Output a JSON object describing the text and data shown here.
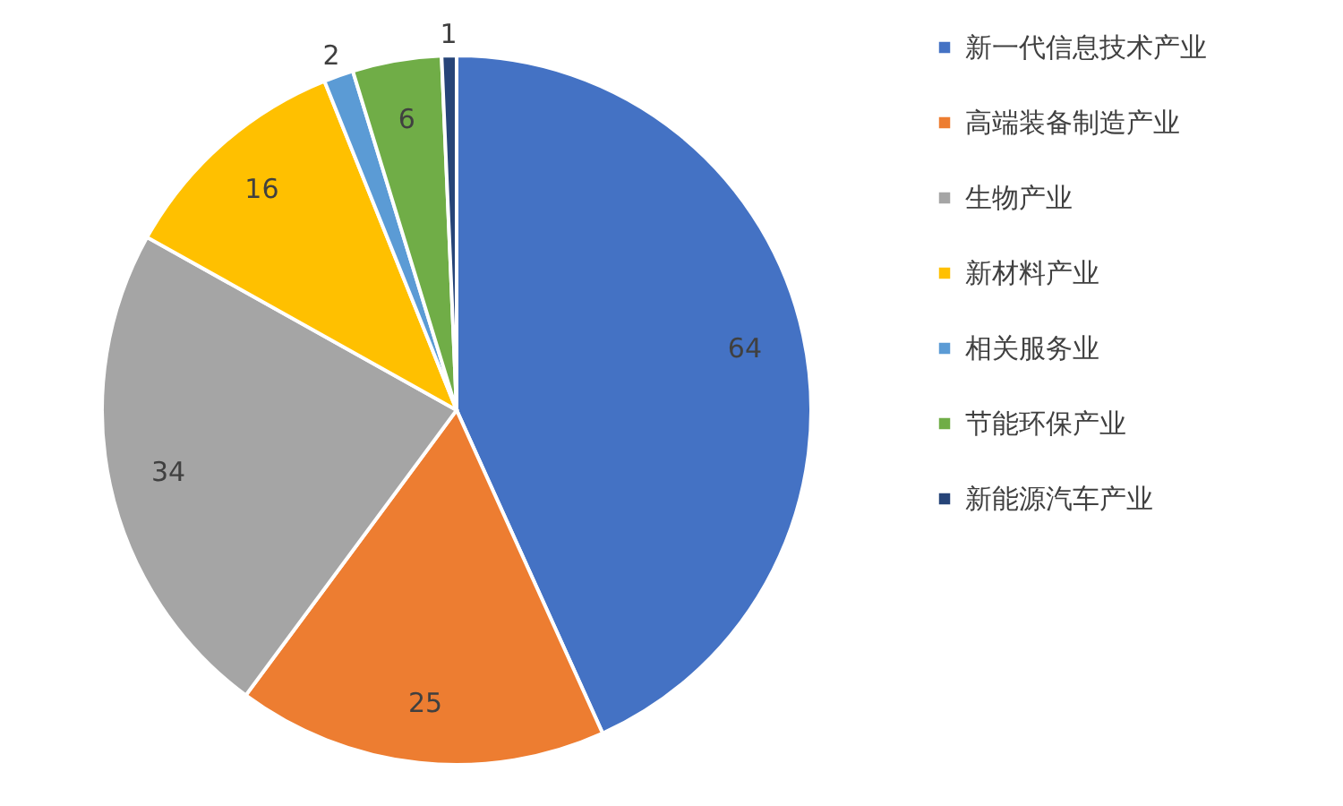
{
  "chart_data": {
    "type": "pie",
    "categories": [
      "新一代信息技术产业",
      "高端装备制造产业",
      "生物产业",
      "新材料产业",
      "相关服务业",
      "节能环保产业",
      "新能源汽车产业"
    ],
    "values": [
      64,
      25,
      34,
      16,
      2,
      6,
      1
    ],
    "colors": [
      "#4472c4",
      "#ed7d31",
      "#a5a5a5",
      "#ffc000",
      "#5b9bd5",
      "#70ad47",
      "#264478"
    ],
    "data_labels": true,
    "legend": "right"
  }
}
